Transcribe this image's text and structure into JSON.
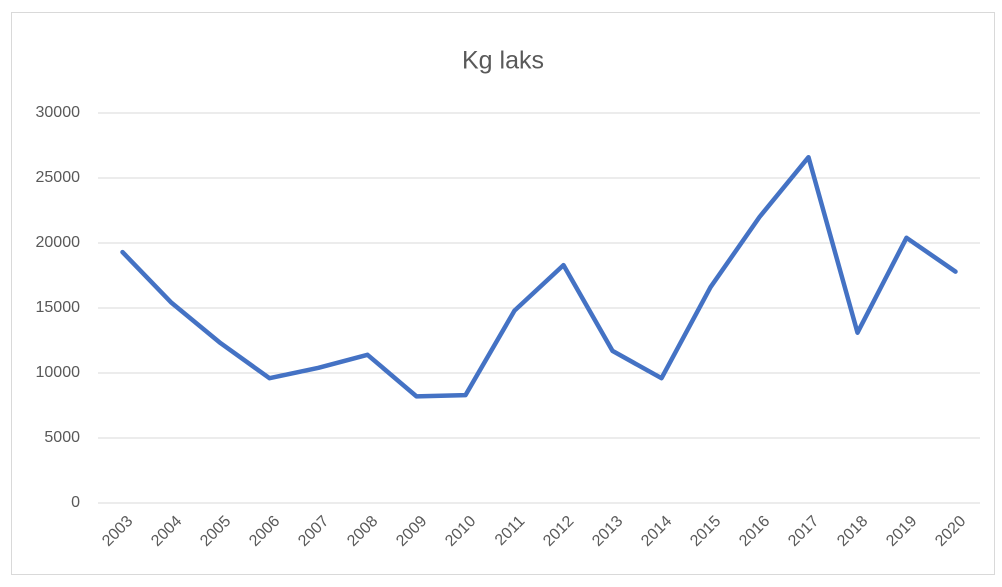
{
  "chart_data": {
    "type": "line",
    "title": "Kg laks",
    "categories": [
      "2003",
      "2004",
      "2005",
      "2006",
      "2007",
      "2008",
      "2009",
      "2010",
      "2011",
      "2012",
      "2013",
      "2014",
      "2015",
      "2016",
      "2017",
      "2018",
      "2019",
      "2020"
    ],
    "series": [
      {
        "color": "#4472c4",
        "values": [
          19300,
          15400,
          12300,
          9600,
          10400,
          11400,
          8200,
          8300,
          14800,
          18300,
          11700,
          9600,
          16600,
          22000,
          26600,
          13100,
          20400,
          17800
        ]
      }
    ],
    "ylim": [
      0,
      30000
    ],
    "yticks": [
      0,
      5000,
      10000,
      15000,
      20000,
      25000,
      30000
    ],
    "grid": true
  }
}
